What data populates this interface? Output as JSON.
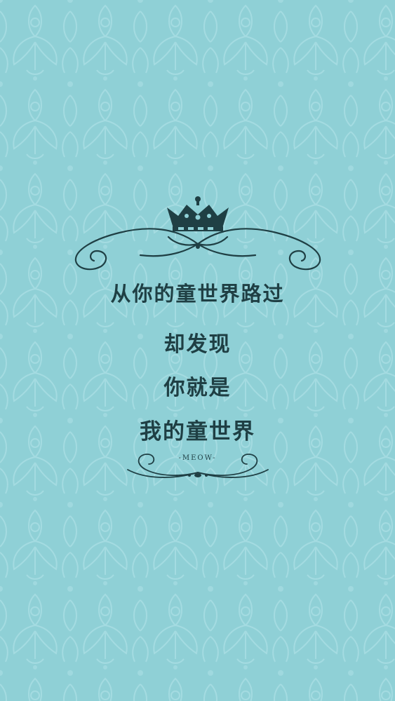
{
  "background": {
    "color": "#8fd0d6",
    "pattern_color": "#a6dde2",
    "pattern": "damask-pattern"
  },
  "ornaments": {
    "top": "crown-with-scroll-flourish",
    "bottom": "scroll-flourish",
    "ink_color": "#1f3f44"
  },
  "text": {
    "line1": "从你的童世界路过",
    "line2": "却发现",
    "line3": "你就是",
    "line4": "我的童世界",
    "signature": "-MEOW-"
  }
}
